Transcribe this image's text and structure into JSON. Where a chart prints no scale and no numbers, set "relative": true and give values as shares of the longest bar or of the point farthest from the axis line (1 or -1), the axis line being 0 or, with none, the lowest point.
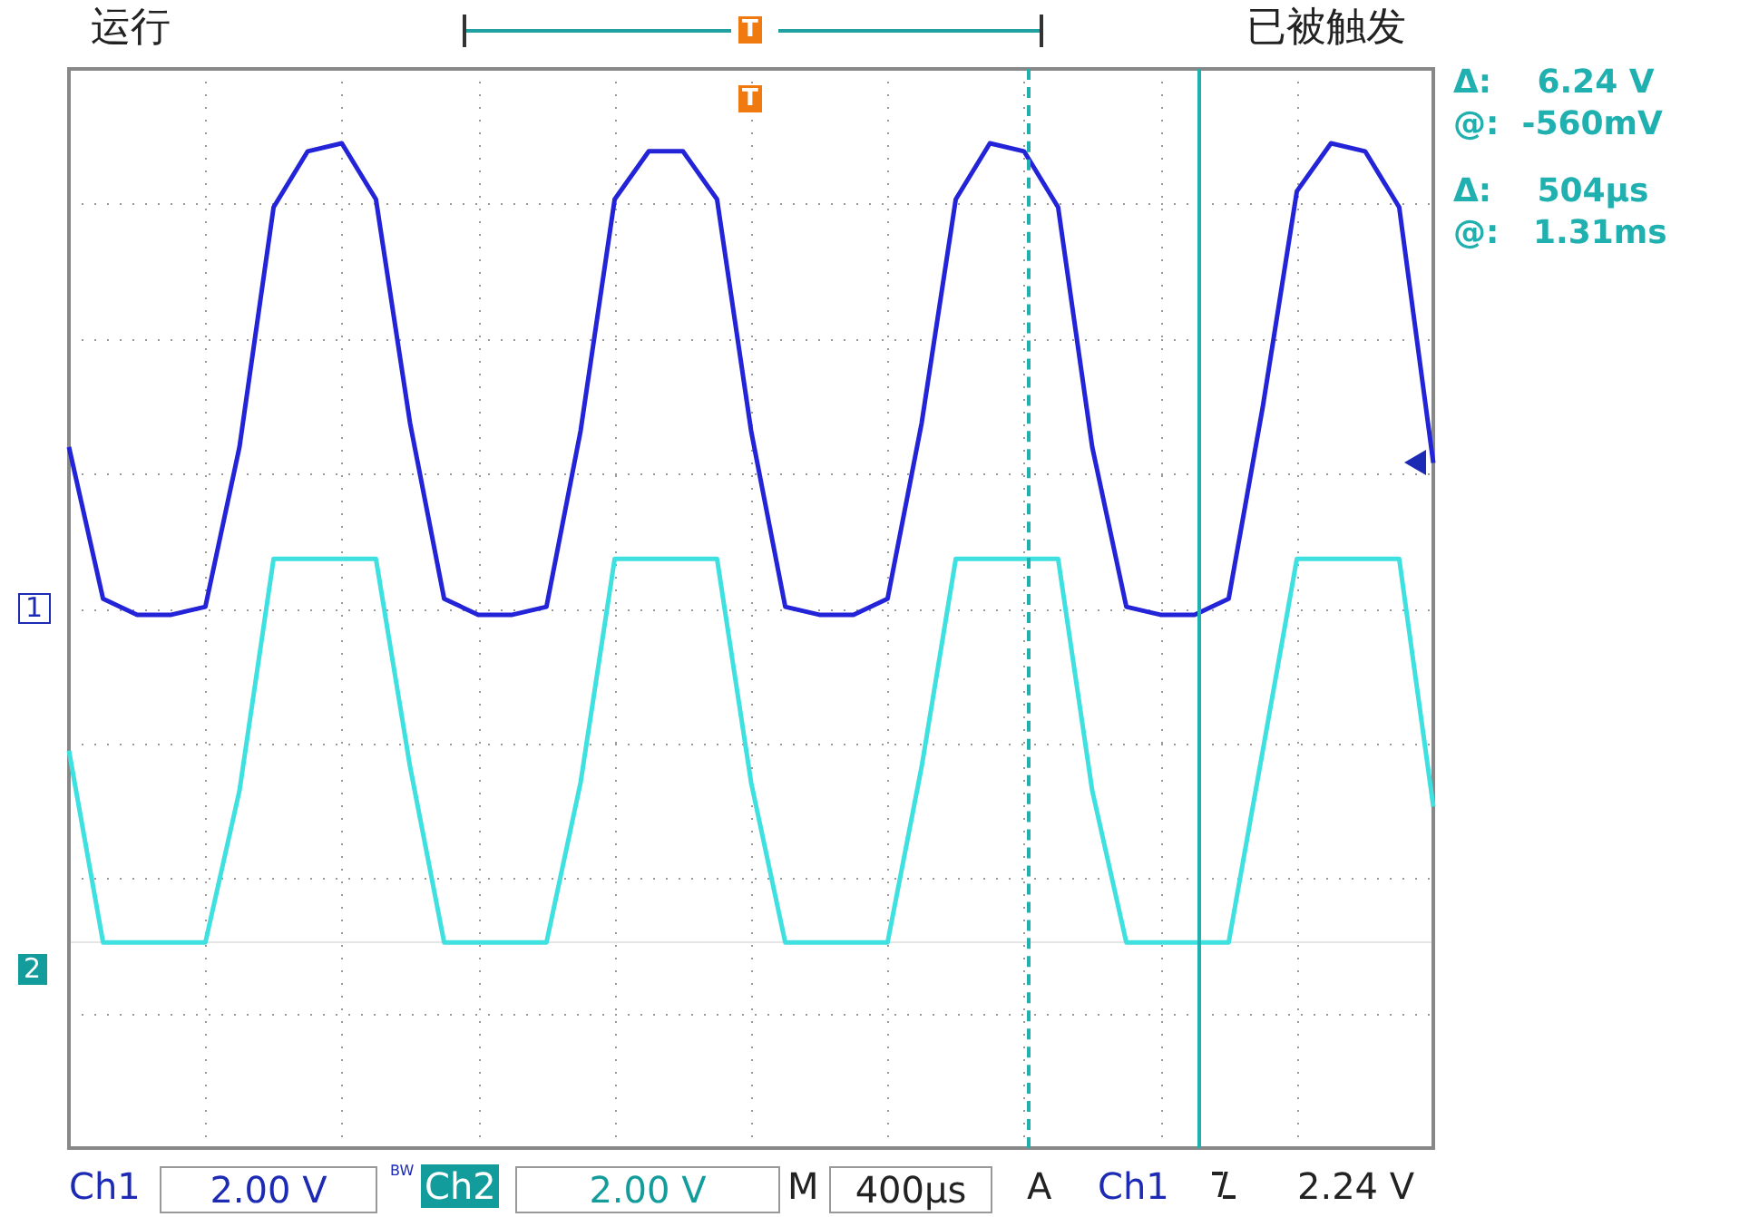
{
  "chart_data": {
    "type": "line",
    "relative": true,
    "categories": [
      null,
      null,
      null,
      null,
      null,
      null,
      null,
      null,
      null,
      null,
      null,
      null,
      null,
      null,
      null,
      null,
      null,
      null,
      null,
      null,
      null,
      null,
      null,
      null,
      null,
      null,
      null,
      null,
      null,
      null,
      null,
      null,
      null,
      null,
      null,
      null,
      null,
      null,
      null,
      null,
      null
    ],
    "grid": true,
    "legend": false,
    "marker": "none",
    "line_style": "solid",
    "series": [
      {
        "color": "#2323d8",
        "values": [
          0.62,
          0.43,
          0.41,
          0.41,
          0.42,
          0.62,
          0.92,
          0.99,
          1.0,
          0.93,
          0.65,
          0.43,
          0.41,
          0.41,
          0.42,
          0.64,
          0.93,
          0.99,
          0.99,
          0.93,
          0.64,
          0.42,
          0.41,
          0.41,
          0.43,
          0.65,
          0.93,
          1.0,
          0.99,
          0.92,
          0.62,
          0.42,
          0.41,
          0.41,
          0.43,
          0.67,
          0.94,
          1.0,
          0.99,
          0.92,
          0.6
        ]
      },
      {
        "color": "#3ee0e0",
        "values": [
          0.24,
          0,
          0,
          0,
          0,
          0.19,
          0.48,
          0.48,
          0.48,
          0.48,
          0.22,
          0,
          0,
          0,
          0,
          0.2,
          0.48,
          0.48,
          0.48,
          0.48,
          0.2,
          0,
          0,
          0,
          0,
          0.22,
          0.48,
          0.48,
          0.48,
          0.48,
          0.19,
          0,
          0,
          0,
          0,
          0.24,
          0.48,
          0.48,
          0.48,
          0.48,
          0.17
        ]
      }
    ],
    "annotations": [
      "运行",
      "已被触发",
      "Δ:    6.24 V",
      "@:  -560mV",
      "Δ:    504µs",
      "@:   1.31ms",
      "Ch1",
      "2.00 V",
      "BW",
      "Ch2",
      "2.00 V",
      "M",
      "400µs",
      "A",
      "Ch1",
      "2.24 V",
      "1",
      "2",
      "T",
      "T"
    ]
  }
}
